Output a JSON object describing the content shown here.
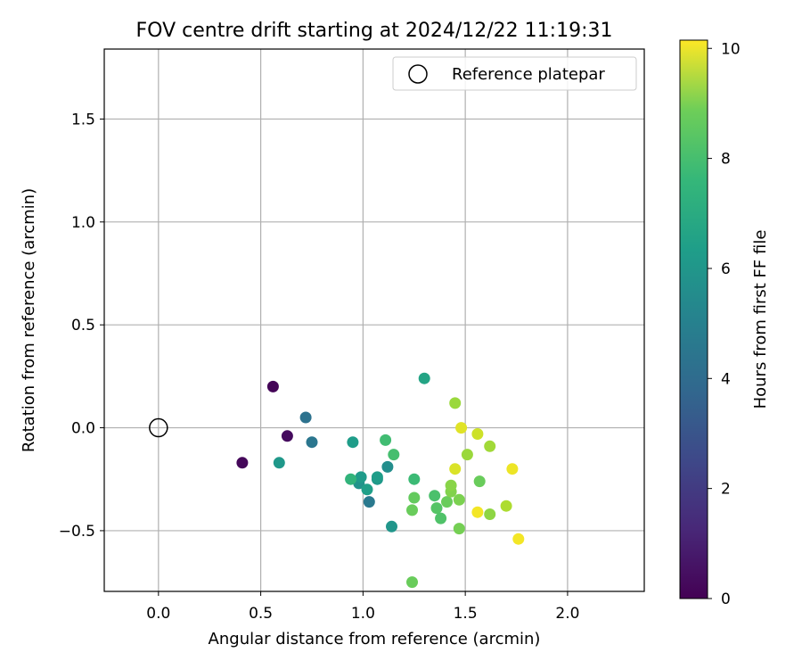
{
  "chart_data": {
    "type": "scatter",
    "title": "FOV centre drift starting at 2024/12/22 11:19:31",
    "xlabel": "Angular distance from reference (arcmin)",
    "ylabel": "Rotation from reference (arcmin)",
    "xlim": [
      -0.265,
      2.375
    ],
    "ylim": [
      -0.795,
      1.84
    ],
    "xticks": [
      0.0,
      0.5,
      1.0,
      1.5,
      2.0
    ],
    "xtick_labels": [
      "0.0",
      "0.5",
      "1.0",
      "1.5",
      "2.0"
    ],
    "yticks": [
      -0.5,
      0.0,
      0.5,
      1.0,
      1.5
    ],
    "ytick_labels": [
      "−0.5",
      "0.0",
      "0.5",
      "1.0",
      "1.5"
    ],
    "grid": true,
    "legend": {
      "placement": "top-right",
      "entries": [
        "Reference platepar"
      ]
    },
    "reference_point": {
      "name": "Reference platepar",
      "x": 0.0,
      "y": 0.0
    },
    "colorbar": {
      "label": "Hours from first FF file",
      "min": 0,
      "max": 10.15,
      "ticks": [
        0,
        2,
        4,
        6,
        8,
        10
      ],
      "tick_labels": [
        "0",
        "2",
        "4",
        "6",
        "8",
        "10"
      ],
      "colormap": "viridis"
    },
    "points": [
      {
        "x": 0.56,
        "y": 0.2,
        "c": 0.1
      },
      {
        "x": 0.63,
        "y": -0.04,
        "c": 0.3
      },
      {
        "x": 0.41,
        "y": -0.17,
        "c": 0.2
      },
      {
        "x": 0.72,
        "y": 0.05,
        "c": 3.8
      },
      {
        "x": 0.75,
        "y": -0.07,
        "c": 4.0
      },
      {
        "x": 0.59,
        "y": -0.17,
        "c": 5.4
      },
      {
        "x": 1.03,
        "y": -0.36,
        "c": 4.1
      },
      {
        "x": 1.3,
        "y": 0.24,
        "c": 5.9
      },
      {
        "x": 0.95,
        "y": -0.07,
        "c": 5.6
      },
      {
        "x": 0.98,
        "y": -0.27,
        "c": 5.2
      },
      {
        "x": 0.99,
        "y": -0.24,
        "c": 5.5
      },
      {
        "x": 1.02,
        "y": -0.3,
        "c": 5.7
      },
      {
        "x": 1.07,
        "y": -0.25,
        "c": 5.4
      },
      {
        "x": 1.07,
        "y": -0.24,
        "c": 5.6
      },
      {
        "x": 1.12,
        "y": -0.19,
        "c": 5.0
      },
      {
        "x": 1.14,
        "y": -0.48,
        "c": 5.3
      },
      {
        "x": 0.94,
        "y": -0.25,
        "c": 6.6
      },
      {
        "x": 1.11,
        "y": -0.06,
        "c": 7.0
      },
      {
        "x": 1.15,
        "y": -0.13,
        "c": 7.1
      },
      {
        "x": 1.25,
        "y": -0.25,
        "c": 6.9
      },
      {
        "x": 1.25,
        "y": -0.34,
        "c": 7.7
      },
      {
        "x": 1.24,
        "y": -0.4,
        "c": 7.8
      },
      {
        "x": 1.24,
        "y": -0.75,
        "c": 7.8
      },
      {
        "x": 1.35,
        "y": -0.33,
        "c": 7.2
      },
      {
        "x": 1.36,
        "y": -0.39,
        "c": 7.4
      },
      {
        "x": 1.38,
        "y": -0.44,
        "c": 7.3
      },
      {
        "x": 1.41,
        "y": -0.36,
        "c": 7.8
      },
      {
        "x": 1.43,
        "y": -0.31,
        "c": 8.2
      },
      {
        "x": 1.43,
        "y": -0.28,
        "c": 8.3
      },
      {
        "x": 1.45,
        "y": 0.12,
        "c": 8.6
      },
      {
        "x": 1.45,
        "y": -0.2,
        "c": 9.6
      },
      {
        "x": 1.47,
        "y": -0.35,
        "c": 8.1
      },
      {
        "x": 1.47,
        "y": -0.49,
        "c": 8.0
      },
      {
        "x": 1.48,
        "y": 0.0,
        "c": 9.7
      },
      {
        "x": 1.51,
        "y": -0.13,
        "c": 8.6
      },
      {
        "x": 1.56,
        "y": -0.03,
        "c": 9.4
      },
      {
        "x": 1.56,
        "y": -0.41,
        "c": 10.0
      },
      {
        "x": 1.57,
        "y": -0.26,
        "c": 7.8
      },
      {
        "x": 1.62,
        "y": -0.09,
        "c": 8.7
      },
      {
        "x": 1.62,
        "y": -0.42,
        "c": 8.4
      },
      {
        "x": 1.7,
        "y": -0.38,
        "c": 8.9
      },
      {
        "x": 1.73,
        "y": -0.2,
        "c": 9.9
      },
      {
        "x": 1.76,
        "y": -0.54,
        "c": 10.0
      }
    ]
  }
}
